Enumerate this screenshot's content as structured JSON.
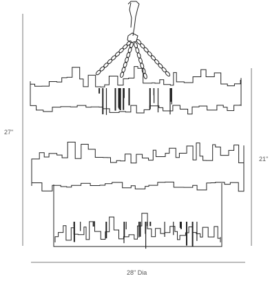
{
  "dimensions": {
    "overall_height": "27\"",
    "shade_height": "21\"",
    "diameter": "28\" Dia"
  },
  "colors": {
    "line": "#222222",
    "dimension_line": "#777777",
    "label": "#555555"
  }
}
